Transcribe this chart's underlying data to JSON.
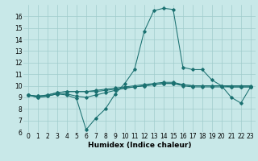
{
  "title": "",
  "xlabel": "Humidex (Indice chaleur)",
  "background_color": "#c8e8e8",
  "grid_color": "#a0cccc",
  "line_color": "#1a7070",
  "x": [
    0,
    1,
    2,
    3,
    4,
    5,
    6,
    7,
    8,
    9,
    10,
    11,
    12,
    13,
    14,
    15,
    16,
    17,
    18,
    19,
    20,
    21,
    22,
    23
  ],
  "line1": [
    9.2,
    9.0,
    9.1,
    9.3,
    9.2,
    8.9,
    6.2,
    7.2,
    8.0,
    9.3,
    10.2,
    11.4,
    14.7,
    16.5,
    16.7,
    16.6,
    11.6,
    11.4,
    11.4,
    10.5,
    10.0,
    9.0,
    8.5,
    9.9
  ],
  "line2": [
    9.2,
    9.0,
    9.1,
    9.3,
    9.3,
    9.1,
    9.0,
    9.2,
    9.4,
    9.6,
    9.8,
    9.9,
    10.0,
    10.1,
    10.2,
    10.2,
    10.0,
    9.9,
    9.9,
    9.9,
    9.9,
    9.9,
    9.9,
    9.9
  ],
  "line3": [
    9.2,
    9.1,
    9.2,
    9.4,
    9.5,
    9.5,
    9.5,
    9.5,
    9.6,
    9.7,
    9.8,
    9.9,
    10.0,
    10.1,
    10.2,
    10.2,
    10.1,
    10.0,
    10.0,
    10.0,
    10.0,
    9.9,
    9.9,
    9.9
  ],
  "line4": [
    9.2,
    9.1,
    9.2,
    9.4,
    9.5,
    9.5,
    9.5,
    9.6,
    9.7,
    9.8,
    9.9,
    10.0,
    10.1,
    10.2,
    10.3,
    10.3,
    10.1,
    10.0,
    10.0,
    10.0,
    10.0,
    10.0,
    10.0,
    10.0
  ],
  "ylim": [
    6,
    17
  ],
  "yticks": [
    6,
    7,
    8,
    9,
    10,
    11,
    12,
    13,
    14,
    15,
    16
  ],
  "xticks": [
    0,
    1,
    2,
    3,
    4,
    5,
    6,
    7,
    8,
    9,
    10,
    11,
    12,
    13,
    14,
    15,
    16,
    17,
    18,
    19,
    20,
    21,
    22,
    23
  ],
  "tick_fontsize": 5.5,
  "xlabel_fontsize": 6.5,
  "marker": "D",
  "marker_size": 1.8,
  "linewidth": 0.75
}
